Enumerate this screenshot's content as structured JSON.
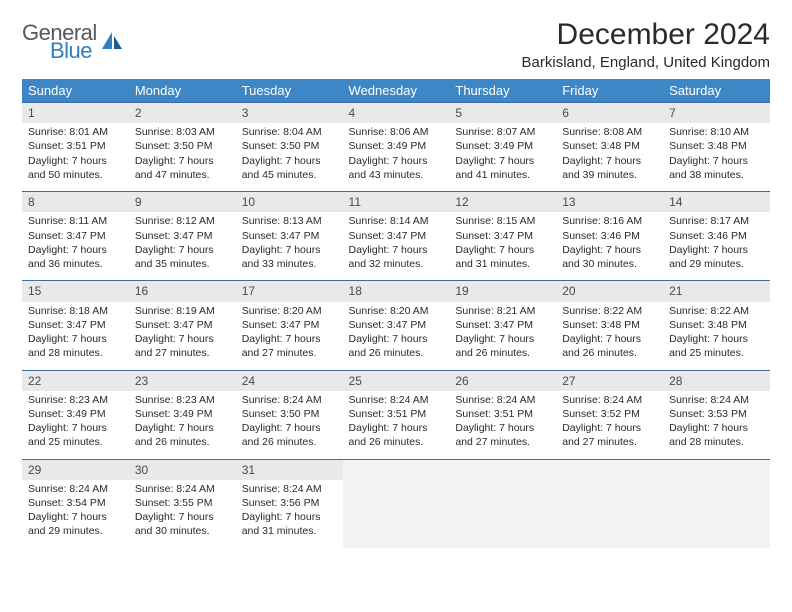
{
  "logo": {
    "word1": "General",
    "word2": "Blue"
  },
  "title": "December 2024",
  "location": "Barkisland, England, United Kingdom",
  "header_bg": "#3d87c7",
  "row_divider": "#3d6da0",
  "daynum_bg": "#e9e9e9",
  "empty_bg": "#f3f3f3",
  "weekdays": [
    "Sunday",
    "Monday",
    "Tuesday",
    "Wednesday",
    "Thursday",
    "Friday",
    "Saturday"
  ],
  "weeks": [
    [
      {
        "n": 1,
        "sr": "8:01 AM",
        "ss": "3:51 PM",
        "dl": "7 hours and 50 minutes."
      },
      {
        "n": 2,
        "sr": "8:03 AM",
        "ss": "3:50 PM",
        "dl": "7 hours and 47 minutes."
      },
      {
        "n": 3,
        "sr": "8:04 AM",
        "ss": "3:50 PM",
        "dl": "7 hours and 45 minutes."
      },
      {
        "n": 4,
        "sr": "8:06 AM",
        "ss": "3:49 PM",
        "dl": "7 hours and 43 minutes."
      },
      {
        "n": 5,
        "sr": "8:07 AM",
        "ss": "3:49 PM",
        "dl": "7 hours and 41 minutes."
      },
      {
        "n": 6,
        "sr": "8:08 AM",
        "ss": "3:48 PM",
        "dl": "7 hours and 39 minutes."
      },
      {
        "n": 7,
        "sr": "8:10 AM",
        "ss": "3:48 PM",
        "dl": "7 hours and 38 minutes."
      }
    ],
    [
      {
        "n": 8,
        "sr": "8:11 AM",
        "ss": "3:47 PM",
        "dl": "7 hours and 36 minutes."
      },
      {
        "n": 9,
        "sr": "8:12 AM",
        "ss": "3:47 PM",
        "dl": "7 hours and 35 minutes."
      },
      {
        "n": 10,
        "sr": "8:13 AM",
        "ss": "3:47 PM",
        "dl": "7 hours and 33 minutes."
      },
      {
        "n": 11,
        "sr": "8:14 AM",
        "ss": "3:47 PM",
        "dl": "7 hours and 32 minutes."
      },
      {
        "n": 12,
        "sr": "8:15 AM",
        "ss": "3:47 PM",
        "dl": "7 hours and 31 minutes."
      },
      {
        "n": 13,
        "sr": "8:16 AM",
        "ss": "3:46 PM",
        "dl": "7 hours and 30 minutes."
      },
      {
        "n": 14,
        "sr": "8:17 AM",
        "ss": "3:46 PM",
        "dl": "7 hours and 29 minutes."
      }
    ],
    [
      {
        "n": 15,
        "sr": "8:18 AM",
        "ss": "3:47 PM",
        "dl": "7 hours and 28 minutes."
      },
      {
        "n": 16,
        "sr": "8:19 AM",
        "ss": "3:47 PM",
        "dl": "7 hours and 27 minutes."
      },
      {
        "n": 17,
        "sr": "8:20 AM",
        "ss": "3:47 PM",
        "dl": "7 hours and 27 minutes."
      },
      {
        "n": 18,
        "sr": "8:20 AM",
        "ss": "3:47 PM",
        "dl": "7 hours and 26 minutes."
      },
      {
        "n": 19,
        "sr": "8:21 AM",
        "ss": "3:47 PM",
        "dl": "7 hours and 26 minutes."
      },
      {
        "n": 20,
        "sr": "8:22 AM",
        "ss": "3:48 PM",
        "dl": "7 hours and 26 minutes."
      },
      {
        "n": 21,
        "sr": "8:22 AM",
        "ss": "3:48 PM",
        "dl": "7 hours and 25 minutes."
      }
    ],
    [
      {
        "n": 22,
        "sr": "8:23 AM",
        "ss": "3:49 PM",
        "dl": "7 hours and 25 minutes."
      },
      {
        "n": 23,
        "sr": "8:23 AM",
        "ss": "3:49 PM",
        "dl": "7 hours and 26 minutes."
      },
      {
        "n": 24,
        "sr": "8:24 AM",
        "ss": "3:50 PM",
        "dl": "7 hours and 26 minutes."
      },
      {
        "n": 25,
        "sr": "8:24 AM",
        "ss": "3:51 PM",
        "dl": "7 hours and 26 minutes."
      },
      {
        "n": 26,
        "sr": "8:24 AM",
        "ss": "3:51 PM",
        "dl": "7 hours and 27 minutes."
      },
      {
        "n": 27,
        "sr": "8:24 AM",
        "ss": "3:52 PM",
        "dl": "7 hours and 27 minutes."
      },
      {
        "n": 28,
        "sr": "8:24 AM",
        "ss": "3:53 PM",
        "dl": "7 hours and 28 minutes."
      }
    ],
    [
      {
        "n": 29,
        "sr": "8:24 AM",
        "ss": "3:54 PM",
        "dl": "7 hours and 29 minutes."
      },
      {
        "n": 30,
        "sr": "8:24 AM",
        "ss": "3:55 PM",
        "dl": "7 hours and 30 minutes."
      },
      {
        "n": 31,
        "sr": "8:24 AM",
        "ss": "3:56 PM",
        "dl": "7 hours and 31 minutes."
      },
      null,
      null,
      null,
      null
    ]
  ],
  "labels": {
    "sunrise": "Sunrise:",
    "sunset": "Sunset:",
    "daylight": "Daylight:"
  }
}
